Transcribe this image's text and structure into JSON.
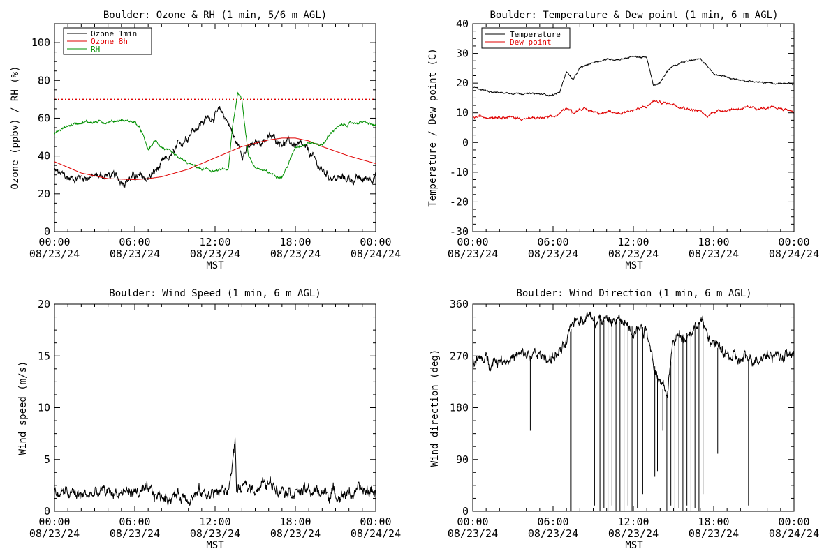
{
  "colors": {
    "black": "#000000",
    "red": "#e00000",
    "green": "#009000",
    "background": "#ffffff"
  },
  "chart_data": [
    {
      "id": "ozone",
      "type": "line",
      "title": "Boulder: Ozone & RH (1 min, 5/6 m AGL)",
      "xlabel": "MST",
      "ylabel": "Ozone (ppbv) / RH (%)",
      "xlim": [
        "08/23/24 00:00",
        "08/24/24 00:00"
      ],
      "x_ticks": [
        {
          "time": "00:00",
          "date": "08/23/24"
        },
        {
          "time": "06:00",
          "date": "08/23/24"
        },
        {
          "time": "12:00",
          "date": "08/23/24"
        },
        {
          "time": "18:00",
          "date": "08/23/24"
        },
        {
          "time": "00:00",
          "date": "08/24/24"
        }
      ],
      "ylim": [
        0,
        110
      ],
      "y_ticks": [
        0,
        20,
        40,
        60,
        80,
        100
      ],
      "grid": false,
      "legend_position": "top-left",
      "reference_line": {
        "value": 70,
        "style": "dotted",
        "color": "#e00000"
      },
      "series": [
        {
          "name": "Ozone 1min",
          "color": "#000000",
          "noise": 2.5,
          "x": [
            0,
            1,
            2,
            3,
            4,
            5,
            6,
            7,
            8,
            9,
            10,
            11,
            12,
            12.5,
            13,
            13.5,
            14,
            15,
            16,
            17,
            18,
            19,
            20,
            21,
            22,
            23,
            24
          ],
          "y": [
            32,
            28,
            29,
            29,
            30,
            27,
            29,
            28,
            35,
            42,
            52,
            58,
            62,
            63,
            58,
            48,
            42,
            46,
            50,
            48,
            46,
            42,
            32,
            28,
            28,
            27,
            30
          ]
        },
        {
          "name": "Ozone 8h",
          "color": "#e00000",
          "noise": 0,
          "x": [
            0,
            2,
            4,
            6,
            7,
            8,
            10,
            12,
            14,
            16,
            17,
            18,
            19,
            20,
            22,
            24
          ],
          "y": [
            37,
            31,
            28,
            27.5,
            28,
            29,
            33,
            39,
            45,
            48.5,
            49.5,
            49.5,
            48,
            45,
            40,
            36
          ]
        },
        {
          "name": "RH",
          "color": "#009000",
          "noise": 0.8,
          "x": [
            0,
            1,
            2,
            3,
            4,
            5,
            6,
            6.5,
            7,
            7.5,
            8,
            9,
            10,
            11,
            12,
            13,
            13.3,
            13.7,
            14,
            14.5,
            15,
            16,
            17,
            17.5,
            18,
            19,
            20,
            21,
            22,
            23,
            24
          ],
          "y": [
            52,
            56,
            58,
            58,
            58,
            59,
            58,
            53,
            43,
            48,
            45,
            40,
            36,
            33,
            32,
            33,
            55,
            74,
            70,
            40,
            34,
            31,
            29,
            36,
            45,
            47,
            46,
            55,
            57,
            58,
            56
          ]
        }
      ]
    },
    {
      "id": "temp",
      "type": "line",
      "title": "Boulder: Temperature & Dew point (1 min, 6 m AGL)",
      "xlabel": "MST",
      "ylabel": "Temperature / Dew point (C)",
      "xlim": [
        "08/23/24 00:00",
        "08/24/24 00:00"
      ],
      "x_ticks": [
        {
          "time": "00:00",
          "date": "08/23/24"
        },
        {
          "time": "06:00",
          "date": "08/23/24"
        },
        {
          "time": "12:00",
          "date": "08/23/24"
        },
        {
          "time": "18:00",
          "date": "08/23/24"
        },
        {
          "time": "00:00",
          "date": "08/24/24"
        }
      ],
      "ylim": [
        -30,
        40
      ],
      "y_ticks": [
        -30,
        -20,
        -10,
        0,
        10,
        20,
        30,
        40
      ],
      "grid": false,
      "legend_position": "top-left",
      "series": [
        {
          "name": "Temperature",
          "color": "#000000",
          "noise": 0.3,
          "x": [
            0,
            1,
            2,
            4,
            6,
            6.5,
            7,
            7.5,
            8,
            9,
            10,
            11,
            12,
            13,
            13.5,
            14,
            14.5,
            15,
            16,
            17,
            17.5,
            18,
            19,
            20,
            21,
            22,
            23,
            24
          ],
          "y": [
            18.5,
            17.5,
            16.8,
            16.5,
            16,
            17,
            24,
            21,
            25,
            27,
            28,
            28,
            29,
            28.5,
            19,
            20,
            24,
            26,
            27.5,
            28,
            26,
            23,
            22,
            21,
            20.5,
            20,
            20,
            19.5
          ]
        },
        {
          "name": "Dew point",
          "color": "#e00000",
          "noise": 0.5,
          "x": [
            0,
            2,
            4,
            6,
            6.5,
            7,
            7.5,
            8,
            9,
            10,
            11,
            12,
            13,
            13.5,
            14,
            15,
            16,
            17,
            17.5,
            18,
            19,
            20,
            22,
            23,
            24
          ],
          "y": [
            8.5,
            8.8,
            8,
            8.5,
            9.5,
            12,
            10,
            11.5,
            10.5,
            10,
            10,
            11,
            12,
            14,
            13.5,
            13,
            11.5,
            10.5,
            8.5,
            10.5,
            11,
            11.5,
            11.5,
            11.5,
            10.5
          ]
        }
      ]
    },
    {
      "id": "wspd",
      "type": "line",
      "title": "Boulder: Wind Speed (1 min, 6 m AGL)",
      "xlabel": "MST",
      "ylabel": "Wind speed (m/s)",
      "xlim": [
        "08/23/24 00:00",
        "08/24/24 00:00"
      ],
      "x_ticks": [
        {
          "time": "00:00",
          "date": "08/23/24"
        },
        {
          "time": "06:00",
          "date": "08/23/24"
        },
        {
          "time": "12:00",
          "date": "08/23/24"
        },
        {
          "time": "18:00",
          "date": "08/23/24"
        },
        {
          "time": "00:00",
          "date": "08/24/24"
        }
      ],
      "ylim": [
        0,
        20
      ],
      "y_ticks": [
        0,
        5,
        10,
        15,
        20
      ],
      "grid": false,
      "series": [
        {
          "name": "",
          "color": "#000000",
          "noise": 0.7,
          "x": [
            0,
            2,
            4,
            6,
            8,
            10,
            12,
            13,
            13.5,
            13.6,
            14,
            15,
            16,
            17,
            18,
            20,
            22,
            24
          ],
          "y": [
            1.8,
            1.5,
            1.8,
            1.9,
            1.4,
            1.6,
            1.8,
            2,
            6.8,
            2,
            2.1,
            2.4,
            2.6,
            2.5,
            2,
            1.8,
            1.7,
            2
          ]
        }
      ]
    },
    {
      "id": "wdir",
      "type": "line",
      "title": "Boulder: Wind Direction (1 min, 6 m AGL)",
      "xlabel": "MST",
      "ylabel": "Wind direction (deg)",
      "xlim": [
        "08/23/24 00:00",
        "08/24/24 00:00"
      ],
      "x_ticks": [
        {
          "time": "00:00",
          "date": "08/23/24"
        },
        {
          "time": "06:00",
          "date": "08/23/24"
        },
        {
          "time": "12:00",
          "date": "08/23/24"
        },
        {
          "time": "18:00",
          "date": "08/23/24"
        },
        {
          "time": "00:00",
          "date": "08/24/24"
        }
      ],
      "ylim": [
        0,
        360
      ],
      "y_ticks": [
        0,
        90,
        180,
        270,
        360
      ],
      "grid": false,
      "series": [
        {
          "name": "",
          "color": "#000000",
          "noise": 12,
          "x": [
            0,
            2,
            4,
            6,
            7,
            7.5,
            8,
            9,
            10,
            11,
            12,
            13,
            13.5,
            14,
            14.5,
            15,
            16,
            17,
            17.5,
            18,
            19,
            20,
            22,
            24
          ],
          "y": [
            260,
            265,
            270,
            268,
            285,
            330,
            340,
            340,
            330,
            330,
            320,
            320,
            260,
            220,
            200,
            300,
            310,
            330,
            310,
            290,
            270,
            260,
            275,
            270
          ],
          "spikes": [
            {
              "x": 1.8,
              "y": 120
            },
            {
              "x": 4.3,
              "y": 140
            },
            {
              "x": 7.3,
              "y": 0
            },
            {
              "x": 7.35,
              "y": 0
            },
            {
              "x": 9.1,
              "y": 10
            },
            {
              "x": 9.5,
              "y": 0
            },
            {
              "x": 9.8,
              "y": 5
            },
            {
              "x": 10.1,
              "y": 0
            },
            {
              "x": 10.4,
              "y": 10
            },
            {
              "x": 10.7,
              "y": 0
            },
            {
              "x": 11.0,
              "y": 5
            },
            {
              "x": 11.3,
              "y": 0
            },
            {
              "x": 11.6,
              "y": 10
            },
            {
              "x": 11.9,
              "y": 0
            },
            {
              "x": 12.3,
              "y": 5
            },
            {
              "x": 12.7,
              "y": 30
            },
            {
              "x": 13.6,
              "y": 60
            },
            {
              "x": 13.8,
              "y": 70
            },
            {
              "x": 14.2,
              "y": 140
            },
            {
              "x": 14.5,
              "y": 0
            },
            {
              "x": 14.8,
              "y": 10
            },
            {
              "x": 15.1,
              "y": 0
            },
            {
              "x": 15.4,
              "y": 5
            },
            {
              "x": 15.7,
              "y": 0
            },
            {
              "x": 16.0,
              "y": 10
            },
            {
              "x": 16.3,
              "y": 0
            },
            {
              "x": 16.6,
              "y": 5
            },
            {
              "x": 16.9,
              "y": 0
            },
            {
              "x": 17.2,
              "y": 30
            },
            {
              "x": 18.3,
              "y": 100
            },
            {
              "x": 20.6,
              "y": 10
            }
          ]
        }
      ]
    }
  ]
}
